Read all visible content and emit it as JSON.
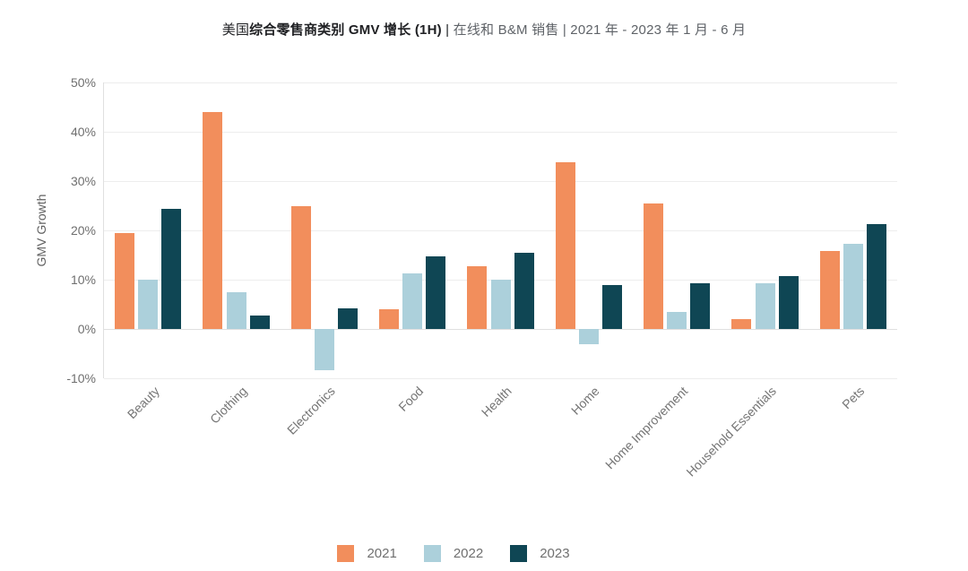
{
  "title": {
    "prefix": "美国",
    "bold": "综合零售商类别 GMV 增长 (1H)",
    "separator": " | ",
    "subtitle": "在线和 B&M 销售 | 2021 年 - 2023 年 1 月 - 6 月"
  },
  "colors": {
    "series_2021": "#F28E5C",
    "series_2022": "#ACD0DB",
    "series_2023": "#0F4654",
    "gridline": "#ededed",
    "axis_text": "#6f6f6f",
    "title_text": "#202124",
    "subtitle_text": "#5f6368"
  },
  "chart_data": {
    "type": "bar",
    "title": "美国综合零售商类别 GMV 增长 (1H) | 在线和 B&M 销售 | 2021 年 - 2023 年 1 月 - 6 月",
    "xlabel": "",
    "ylabel": "GMV Growth",
    "ylim": [
      -10,
      50
    ],
    "ytick_values": [
      50,
      40,
      30,
      20,
      10,
      0,
      -10
    ],
    "ytick_labels": [
      "50%",
      "40%",
      "30%",
      "20%",
      "10%",
      "0%",
      "-10%"
    ],
    "grid": true,
    "legend_position": "bottom",
    "categories": [
      "Beauty",
      "Clothing",
      "Electronics",
      "Food",
      "Health",
      "Home",
      "Home Improvement",
      "Household Essentials",
      "Pets"
    ],
    "series": [
      {
        "name": "2021",
        "color": "#F28E5C",
        "values": [
          19.5,
          44.0,
          25.0,
          4.0,
          12.7,
          33.8,
          25.4,
          2.0,
          15.9
        ]
      },
      {
        "name": "2022",
        "color": "#ACD0DB",
        "values": [
          10.0,
          7.5,
          -8.3,
          11.3,
          10.0,
          -3.0,
          3.5,
          9.3,
          17.3
        ]
      },
      {
        "name": "2023",
        "color": "#0F4654",
        "values": [
          24.3,
          2.8,
          4.2,
          14.8,
          15.5,
          9.0,
          9.2,
          10.8,
          21.3
        ]
      }
    ]
  }
}
